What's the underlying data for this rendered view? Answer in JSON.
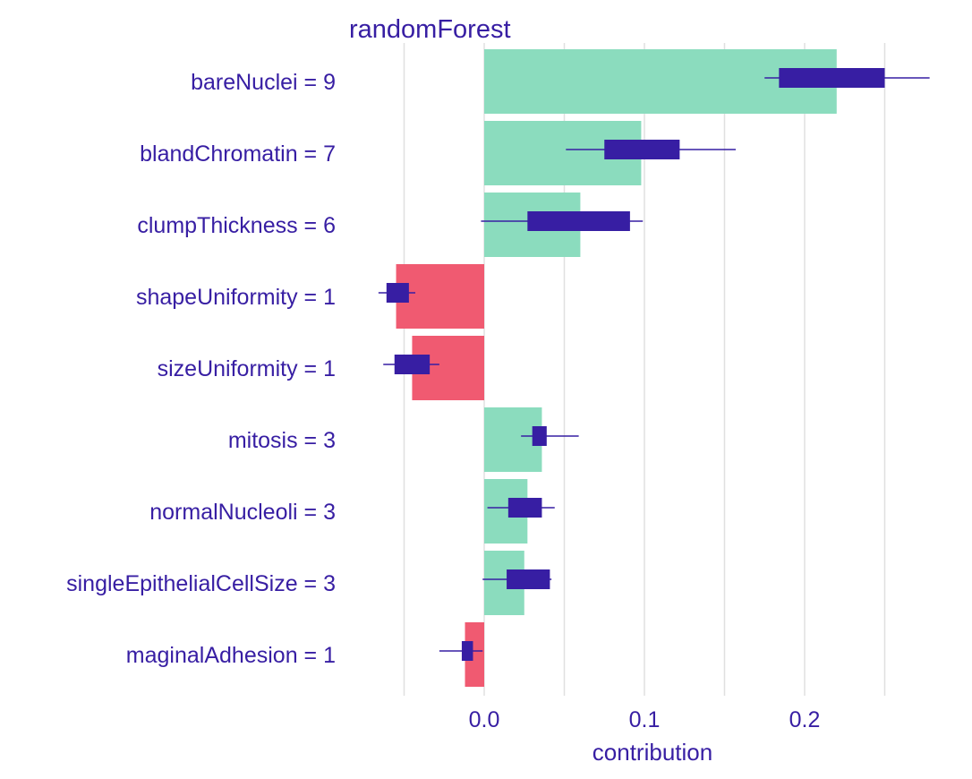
{
  "chart_data": {
    "type": "bar",
    "title": "randomForest",
    "xlabel": "contribution",
    "ylabel": "",
    "xlim": [
      -0.075,
      0.28
    ],
    "xticks": [
      0.0,
      0.1,
      0.2
    ],
    "xtick_labels": [
      "0.0",
      "0.1",
      "0.2"
    ],
    "grid": true,
    "categories": [
      "bareNuclei = 9",
      "blandChromatin = 7",
      "clumpThickness = 6",
      "shapeUniformity = 1",
      "sizeUniformity = 1",
      "mitosis = 3",
      "normalNucleoli = 3",
      "singleEpithelialCellSize = 3",
      "maginalAdhesion = 1"
    ],
    "values": [
      0.22,
      0.098,
      0.06,
      -0.055,
      -0.045,
      0.036,
      0.027,
      0.025,
      -0.012
    ],
    "boxplots": [
      {
        "min": 0.175,
        "q1": 0.184,
        "q3": 0.25,
        "max": 0.278
      },
      {
        "min": 0.051,
        "q1": 0.075,
        "q3": 0.122,
        "max": 0.157
      },
      {
        "min": -0.002,
        "q1": 0.027,
        "q3": 0.091,
        "max": 0.099
      },
      {
        "min": -0.066,
        "q1": -0.061,
        "q3": -0.047,
        "max": -0.043
      },
      {
        "min": -0.063,
        "q1": -0.056,
        "q3": -0.034,
        "max": -0.028
      },
      {
        "min": 0.023,
        "q1": 0.03,
        "q3": 0.039,
        "max": 0.059
      },
      {
        "min": 0.002,
        "q1": 0.015,
        "q3": 0.036,
        "max": 0.044
      },
      {
        "min": -0.001,
        "q1": 0.014,
        "q3": 0.041,
        "max": 0.042
      },
      {
        "min": -0.028,
        "q1": -0.014,
        "q3": -0.007,
        "max": -0.001
      }
    ],
    "colors": {
      "positive": "#8bdcbe",
      "negative": "#f05a71",
      "box": "#371ea3",
      "text": "#371ea3",
      "grid": "#e0e0e0"
    }
  }
}
